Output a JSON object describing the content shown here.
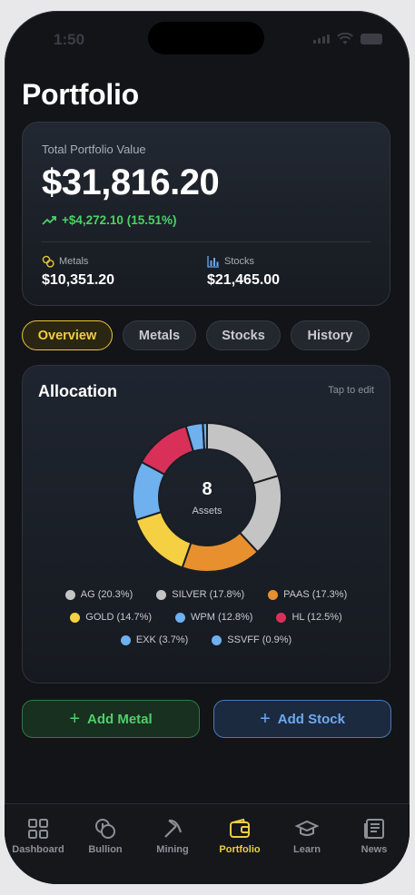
{
  "status": {
    "time": "1:50"
  },
  "page": {
    "title": "Portfolio"
  },
  "summary": {
    "label": "Total Portfolio Value",
    "total": "$31,816.20",
    "gain": "+$4,272.10 (15.51%)",
    "metals_label": "Metals",
    "metals_value": "$10,351.20",
    "stocks_label": "Stocks",
    "stocks_value": "$21,465.00"
  },
  "tabs": [
    {
      "label": "Overview",
      "active": true
    },
    {
      "label": "Metals",
      "active": false
    },
    {
      "label": "Stocks",
      "active": false
    },
    {
      "label": "History",
      "active": false
    }
  ],
  "allocation": {
    "title": "Allocation",
    "edit_hint": "Tap to edit",
    "count": "8",
    "count_label": "Assets"
  },
  "chart_data": {
    "type": "pie",
    "categories": [
      "AG",
      "SILVER",
      "PAAS",
      "GOLD",
      "WPM",
      "HL",
      "EXK",
      "SSVFF"
    ],
    "values": [
      20.3,
      17.8,
      17.3,
      14.7,
      12.8,
      12.5,
      3.7,
      0.9
    ],
    "colors": [
      "#c4c4c4",
      "#c4c4c4",
      "#e8902e",
      "#f5d042",
      "#6fb0ee",
      "#d9305a",
      "#6fb0ee",
      "#6fb0ee"
    ],
    "legend": [
      "AG (20.3%)",
      "SILVER (17.8%)",
      "PAAS (17.3%)",
      "GOLD (14.7%)",
      "WPM (12.8%)",
      "HL (12.5%)",
      "EXK (3.7%)",
      "SSVFF (0.9%)"
    ]
  },
  "actions": {
    "add_metal": "Add Metal",
    "add_stock": "Add Stock"
  },
  "nav": [
    {
      "label": "Dashboard",
      "icon": "dashboard-icon"
    },
    {
      "label": "Bullion",
      "icon": "coins-icon"
    },
    {
      "label": "Mining",
      "icon": "pickaxe-icon"
    },
    {
      "label": "Portfolio",
      "icon": "wallet-icon",
      "active": true
    },
    {
      "label": "Learn",
      "icon": "graduation-cap-icon"
    },
    {
      "label": "News",
      "icon": "newspaper-icon"
    }
  ]
}
